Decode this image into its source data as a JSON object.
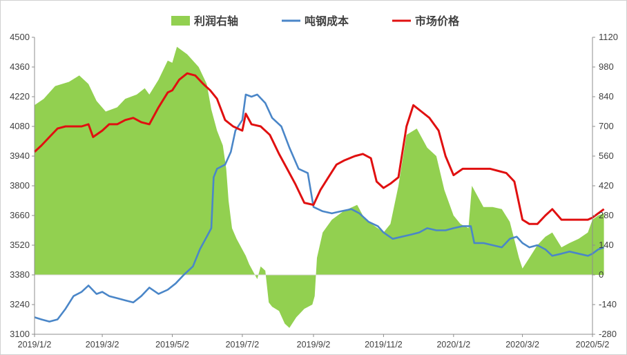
{
  "chart_data": {
    "type": "line",
    "legend_position": "top",
    "grid": false,
    "x_ticks": [
      "2019/1/2",
      "2019/3/2",
      "2019/5/2",
      "2019/7/2",
      "2019/9/2",
      "2019/11/2",
      "2020/1/2",
      "2020/3/2",
      "2020/5/2"
    ],
    "y_left": {
      "min": 3100,
      "max": 4500,
      "ticks": [
        4500,
        4360,
        4220,
        4080,
        3940,
        3800,
        3660,
        3520,
        3380,
        3240,
        3100
      ]
    },
    "y_right": {
      "min": -280,
      "max": 1120,
      "ticks": [
        1120,
        980,
        840,
        700,
        560,
        420,
        280,
        140,
        0,
        -140,
        -280
      ]
    },
    "series": [
      {
        "name": "利润右轴",
        "type": "area",
        "axis": "right",
        "color": "#92d050",
        "points": [
          [
            "2019/1/2",
            800
          ],
          [
            "2019/1/10",
            830
          ],
          [
            "2019/1/20",
            890
          ],
          [
            "2019/2/1",
            910
          ],
          [
            "2019/2/10",
            940
          ],
          [
            "2019/2/18",
            900
          ],
          [
            "2019/2/25",
            820
          ],
          [
            "2019/3/5",
            770
          ],
          [
            "2019/3/15",
            790
          ],
          [
            "2019/3/22",
            830
          ],
          [
            "2019/4/1",
            850
          ],
          [
            "2019/4/8",
            880
          ],
          [
            "2019/4/12",
            850
          ],
          [
            "2019/4/20",
            920
          ],
          [
            "2019/4/28",
            1010
          ],
          [
            "2019/5/2",
            1000
          ],
          [
            "2019/5/6",
            1075
          ],
          [
            "2019/5/15",
            1040
          ],
          [
            "2019/5/25",
            980
          ],
          [
            "2019/6/1",
            900
          ],
          [
            "2019/6/5",
            780
          ],
          [
            "2019/6/10",
            680
          ],
          [
            "2019/6/15",
            610
          ],
          [
            "2019/6/18",
            500
          ],
          [
            "2019/6/20",
            350
          ],
          [
            "2019/6/23",
            220
          ],
          [
            "2019/6/27",
            170
          ],
          [
            "2019/7/2",
            120
          ],
          [
            "2019/7/5",
            90
          ],
          [
            "2019/7/8",
            50
          ],
          [
            "2019/7/10",
            30
          ],
          [
            "2019/7/12",
            10
          ],
          [
            "2019/7/15",
            -20
          ],
          [
            "2019/7/18",
            40
          ],
          [
            "2019/7/22",
            20
          ],
          [
            "2019/7/25",
            -130
          ],
          [
            "2019/7/28",
            -150
          ],
          [
            "2019/8/3",
            -170
          ],
          [
            "2019/8/8",
            -230
          ],
          [
            "2019/8/12",
            -250
          ],
          [
            "2019/8/18",
            -200
          ],
          [
            "2019/8/25",
            -160
          ],
          [
            "2019/9/1",
            -140
          ],
          [
            "2019/9/3",
            -100
          ],
          [
            "2019/9/5",
            80
          ],
          [
            "2019/9/10",
            200
          ],
          [
            "2019/9/18",
            260
          ],
          [
            "2019/9/28",
            300
          ],
          [
            "2019/10/10",
            330
          ],
          [
            "2019/10/15",
            280
          ],
          [
            "2019/10/20",
            250
          ],
          [
            "2019/10/28",
            220
          ],
          [
            "2019/11/2",
            200
          ],
          [
            "2019/11/8",
            240
          ],
          [
            "2019/11/15",
            420
          ],
          [
            "2019/11/22",
            660
          ],
          [
            "2019/12/1",
            690
          ],
          [
            "2019/12/10",
            600
          ],
          [
            "2019/12/18",
            560
          ],
          [
            "2019/12/25",
            400
          ],
          [
            "2020/1/2",
            280
          ],
          [
            "2020/1/8",
            240
          ],
          [
            "2020/1/15",
            220
          ],
          [
            "2020/1/18",
            420
          ],
          [
            "2020/1/28",
            320
          ],
          [
            "2020/2/5",
            320
          ],
          [
            "2020/2/13",
            310
          ],
          [
            "2020/2/20",
            250
          ],
          [
            "2020/2/28",
            80
          ],
          [
            "2020/3/2",
            30
          ],
          [
            "2020/3/8",
            80
          ],
          [
            "2020/3/15",
            140
          ],
          [
            "2020/3/22",
            180
          ],
          [
            "2020/3/28",
            200
          ],
          [
            "2020/4/5",
            130
          ],
          [
            "2020/4/12",
            150
          ],
          [
            "2020/4/20",
            170
          ],
          [
            "2020/4/28",
            200
          ],
          [
            "2020/5/2",
            260
          ],
          [
            "2020/5/7",
            280
          ],
          [
            "2020/5/12",
            290
          ]
        ]
      },
      {
        "name": "吨钢成本",
        "type": "line",
        "axis": "left",
        "color": "#4a86c8",
        "points": [
          [
            "2019/1/2",
            3180
          ],
          [
            "2019/1/8",
            3170
          ],
          [
            "2019/1/15",
            3160
          ],
          [
            "2019/1/22",
            3170
          ],
          [
            "2019/1/29",
            3220
          ],
          [
            "2019/2/5",
            3280
          ],
          [
            "2019/2/12",
            3300
          ],
          [
            "2019/2/18",
            3330
          ],
          [
            "2019/2/25",
            3290
          ],
          [
            "2019/3/2",
            3300
          ],
          [
            "2019/3/8",
            3280
          ],
          [
            "2019/3/15",
            3270
          ],
          [
            "2019/3/22",
            3260
          ],
          [
            "2019/3/29",
            3250
          ],
          [
            "2019/4/5",
            3280
          ],
          [
            "2019/4/12",
            3320
          ],
          [
            "2019/4/20",
            3290
          ],
          [
            "2019/4/28",
            3310
          ],
          [
            "2019/5/5",
            3340
          ],
          [
            "2019/5/12",
            3380
          ],
          [
            "2019/5/20",
            3420
          ],
          [
            "2019/5/26",
            3500
          ],
          [
            "2019/6/1",
            3560
          ],
          [
            "2019/6/5",
            3600
          ],
          [
            "2019/6/7",
            3840
          ],
          [
            "2019/6/10",
            3880
          ],
          [
            "2019/6/17",
            3900
          ],
          [
            "2019/6/22",
            3960
          ],
          [
            "2019/6/26",
            4060
          ],
          [
            "2019/7/2",
            4110
          ],
          [
            "2019/7/5",
            4230
          ],
          [
            "2019/7/10",
            4220
          ],
          [
            "2019/7/15",
            4230
          ],
          [
            "2019/7/22",
            4190
          ],
          [
            "2019/7/28",
            4120
          ],
          [
            "2019/8/5",
            4080
          ],
          [
            "2019/8/12",
            3980
          ],
          [
            "2019/8/20",
            3880
          ],
          [
            "2019/8/28",
            3860
          ],
          [
            "2019/9/2",
            3700
          ],
          [
            "2019/9/10",
            3680
          ],
          [
            "2019/9/18",
            3670
          ],
          [
            "2019/9/26",
            3680
          ],
          [
            "2019/10/5",
            3690
          ],
          [
            "2019/10/12",
            3670
          ],
          [
            "2019/10/20",
            3630
          ],
          [
            "2019/10/28",
            3610
          ],
          [
            "2019/11/2",
            3580
          ],
          [
            "2019/11/10",
            3550
          ],
          [
            "2019/11/18",
            3560
          ],
          [
            "2019/11/26",
            3570
          ],
          [
            "2019/12/3",
            3580
          ],
          [
            "2019/12/10",
            3600
          ],
          [
            "2019/12/18",
            3590
          ],
          [
            "2019/12/26",
            3590
          ],
          [
            "2020/1/2",
            3600
          ],
          [
            "2020/1/10",
            3610
          ],
          [
            "2020/1/17",
            3610
          ],
          [
            "2020/1/20",
            3530
          ],
          [
            "2020/1/28",
            3530
          ],
          [
            "2020/2/5",
            3520
          ],
          [
            "2020/2/13",
            3510
          ],
          [
            "2020/2/20",
            3550
          ],
          [
            "2020/2/26",
            3560
          ],
          [
            "2020/3/2",
            3530
          ],
          [
            "2020/3/8",
            3510
          ],
          [
            "2020/3/15",
            3520
          ],
          [
            "2020/3/22",
            3500
          ],
          [
            "2020/3/28",
            3470
          ],
          [
            "2020/4/5",
            3480
          ],
          [
            "2020/4/12",
            3490
          ],
          [
            "2020/4/20",
            3480
          ],
          [
            "2020/4/28",
            3470
          ],
          [
            "2020/5/2",
            3480
          ],
          [
            "2020/5/7",
            3500
          ],
          [
            "2020/5/12",
            3510
          ]
        ]
      },
      {
        "name": "市场价格",
        "type": "line",
        "axis": "left",
        "color": "#e01010",
        "points": [
          [
            "2019/1/2",
            3960
          ],
          [
            "2019/1/8",
            3990
          ],
          [
            "2019/1/15",
            4030
          ],
          [
            "2019/1/22",
            4070
          ],
          [
            "2019/1/29",
            4080
          ],
          [
            "2019/2/5",
            4080
          ],
          [
            "2019/2/12",
            4080
          ],
          [
            "2019/2/18",
            4090
          ],
          [
            "2019/2/22",
            4030
          ],
          [
            "2019/3/2",
            4060
          ],
          [
            "2019/3/8",
            4090
          ],
          [
            "2019/3/15",
            4090
          ],
          [
            "2019/3/22",
            4110
          ],
          [
            "2019/3/29",
            4120
          ],
          [
            "2019/4/5",
            4100
          ],
          [
            "2019/4/12",
            4090
          ],
          [
            "2019/4/20",
            4170
          ],
          [
            "2019/4/28",
            4240
          ],
          [
            "2019/5/2",
            4250
          ],
          [
            "2019/5/8",
            4300
          ],
          [
            "2019/5/15",
            4330
          ],
          [
            "2019/5/22",
            4320
          ],
          [
            "2019/5/29",
            4280
          ],
          [
            "2019/6/4",
            4250
          ],
          [
            "2019/6/10",
            4210
          ],
          [
            "2019/6/17",
            4110
          ],
          [
            "2019/6/24",
            4080
          ],
          [
            "2019/7/2",
            4060
          ],
          [
            "2019/7/5",
            4140
          ],
          [
            "2019/7/10",
            4090
          ],
          [
            "2019/7/18",
            4080
          ],
          [
            "2019/7/26",
            4040
          ],
          [
            "2019/8/3",
            3950
          ],
          [
            "2019/8/10",
            3880
          ],
          [
            "2019/8/17",
            3810
          ],
          [
            "2019/8/25",
            3720
          ],
          [
            "2019/9/2",
            3710
          ],
          [
            "2019/9/8",
            3780
          ],
          [
            "2019/9/15",
            3840
          ],
          [
            "2019/9/22",
            3900
          ],
          [
            "2019/9/29",
            3920
          ],
          [
            "2019/10/8",
            3940
          ],
          [
            "2019/10/15",
            3950
          ],
          [
            "2019/10/22",
            3930
          ],
          [
            "2019/10/27",
            3820
          ],
          [
            "2019/11/2",
            3790
          ],
          [
            "2019/11/8",
            3810
          ],
          [
            "2019/11/15",
            3840
          ],
          [
            "2019/11/22",
            4080
          ],
          [
            "2019/11/28",
            4180
          ],
          [
            "2019/12/5",
            4150
          ],
          [
            "2019/12/12",
            4120
          ],
          [
            "2019/12/20",
            4060
          ],
          [
            "2019/12/26",
            3940
          ],
          [
            "2020/1/2",
            3850
          ],
          [
            "2020/1/10",
            3880
          ],
          [
            "2020/1/17",
            3880
          ],
          [
            "2020/1/25",
            3880
          ],
          [
            "2020/2/3",
            3880
          ],
          [
            "2020/2/10",
            3870
          ],
          [
            "2020/2/17",
            3860
          ],
          [
            "2020/2/24",
            3820
          ],
          [
            "2020/3/2",
            3640
          ],
          [
            "2020/3/8",
            3620
          ],
          [
            "2020/3/15",
            3620
          ],
          [
            "2020/3/22",
            3660
          ],
          [
            "2020/3/28",
            3690
          ],
          [
            "2020/4/5",
            3640
          ],
          [
            "2020/4/12",
            3640
          ],
          [
            "2020/4/20",
            3640
          ],
          [
            "2020/4/28",
            3640
          ],
          [
            "2020/5/2",
            3650
          ],
          [
            "2020/5/7",
            3670
          ],
          [
            "2020/5/12",
            3690
          ]
        ]
      }
    ]
  }
}
